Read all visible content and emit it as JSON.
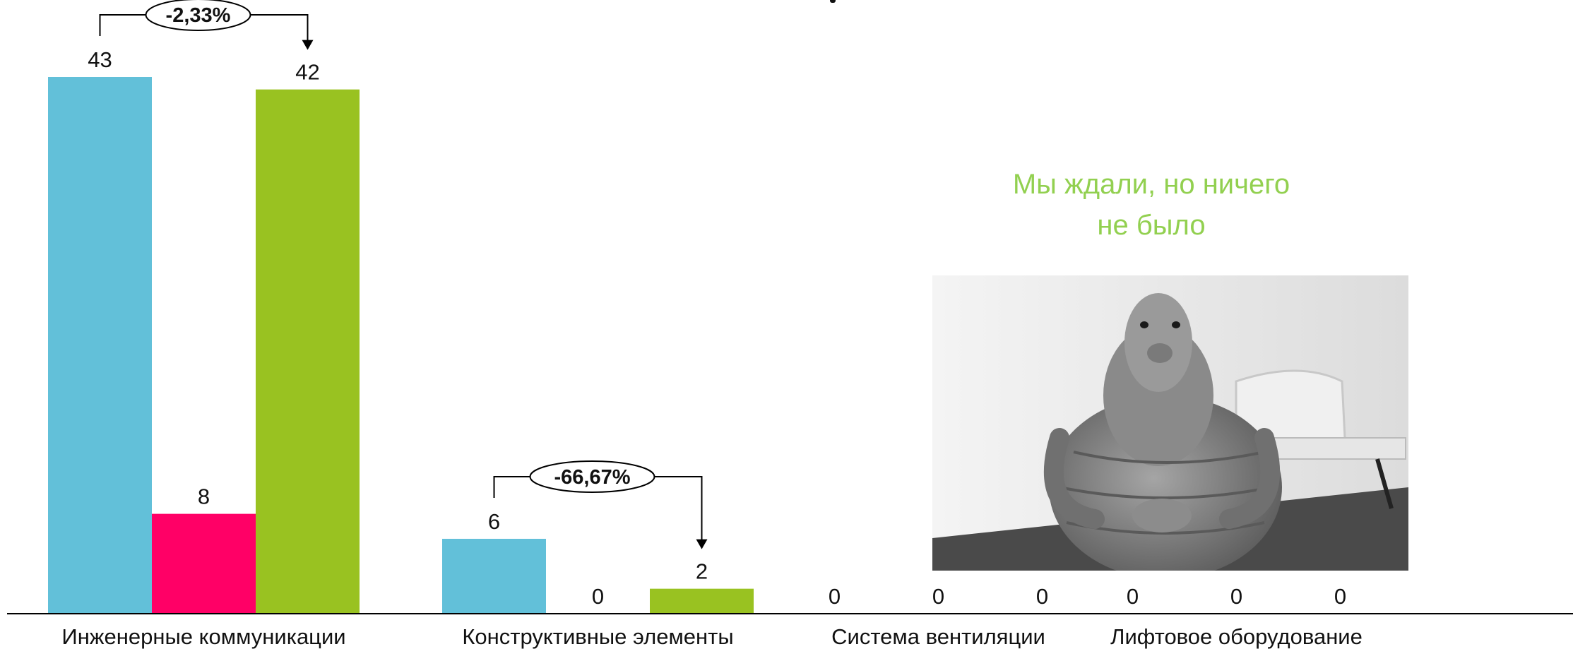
{
  "chart_data": {
    "type": "bar",
    "title": "",
    "xlabel": "",
    "ylabel": "",
    "ylim": [
      0,
      45
    ],
    "grid": false,
    "legend": "none",
    "categories": [
      "Инженерные коммуникации",
      "Конструктивные элементы",
      "Система вентиляции",
      "Лифтовое оборудование"
    ],
    "series": [
      {
        "color": "#62c0d9",
        "values": [
          43,
          6,
          0,
          0
        ]
      },
      {
        "color": "#ff0066",
        "values": [
          8,
          0,
          0,
          0
        ]
      },
      {
        "color": "#99c221",
        "values": [
          42,
          2,
          0,
          0
        ]
      }
    ],
    "value_labels": [
      [
        "43",
        "6",
        "0",
        "0"
      ],
      [
        "8",
        "0",
        "0",
        "0"
      ],
      [
        "42",
        "2",
        "0",
        "0"
      ]
    ],
    "annotations": [
      {
        "category_index": 0,
        "from_series": 0,
        "to_series": 2,
        "text": "-2,33%"
      },
      {
        "category_index": 1,
        "from_series": 0,
        "to_series": 2,
        "text": "-66,67%"
      }
    ],
    "note": {
      "lines": [
        "Мы ждали, но ничего",
        "не было"
      ],
      "color": "#92d050"
    }
  },
  "image": {
    "icon": "sitting-creature-photo"
  }
}
